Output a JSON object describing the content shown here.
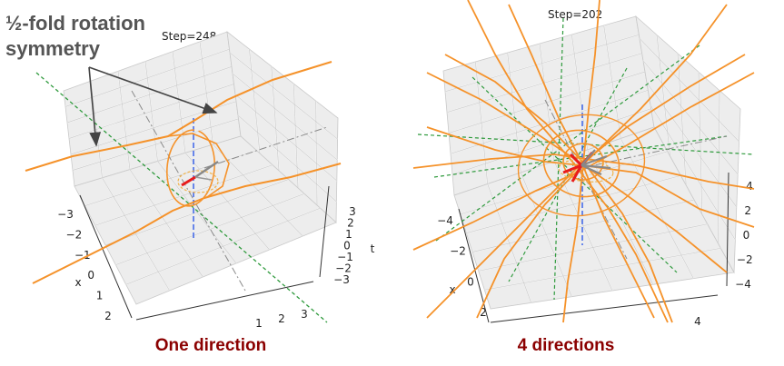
{
  "annotation": {
    "line1": "½-fold rotation",
    "line2": "symmetry"
  },
  "colors": {
    "curve": "#f5922a",
    "symmetry_axis": "#2e9a3c",
    "time_axis": "#2f5be8",
    "vector": "#e81c1c",
    "grid": "#c9c9c9",
    "pane": "#ededed",
    "caption": "#8b0000",
    "annotation": "#555555"
  },
  "chart_data": [
    {
      "type": "3d-line",
      "step_label": "Step=248",
      "caption": "One direction",
      "directions": 1,
      "axes": {
        "x": {
          "label": "x",
          "ticks": [
            "−3",
            "−2",
            "−1",
            "0",
            "1",
            "2"
          ]
        },
        "y": {
          "label": "",
          "ticks": [
            "1",
            "2",
            "3"
          ]
        },
        "t": {
          "label": "t",
          "ticks": [
            "3",
            "2",
            "1",
            "0",
            "−1",
            "−2",
            "−3"
          ]
        }
      },
      "grid": true
    },
    {
      "type": "3d-line",
      "step_label": "Step=202",
      "caption": "4 directions",
      "directions": 4,
      "axes": {
        "x": {
          "label": "x",
          "ticks": [
            "−4",
            "−2",
            "0",
            "2"
          ]
        },
        "y": {
          "label": "",
          "ticks": [
            "4"
          ]
        },
        "t": {
          "label": "",
          "ticks": [
            "4",
            "2",
            "0",
            "−2",
            "−4"
          ]
        }
      },
      "grid": true
    }
  ]
}
